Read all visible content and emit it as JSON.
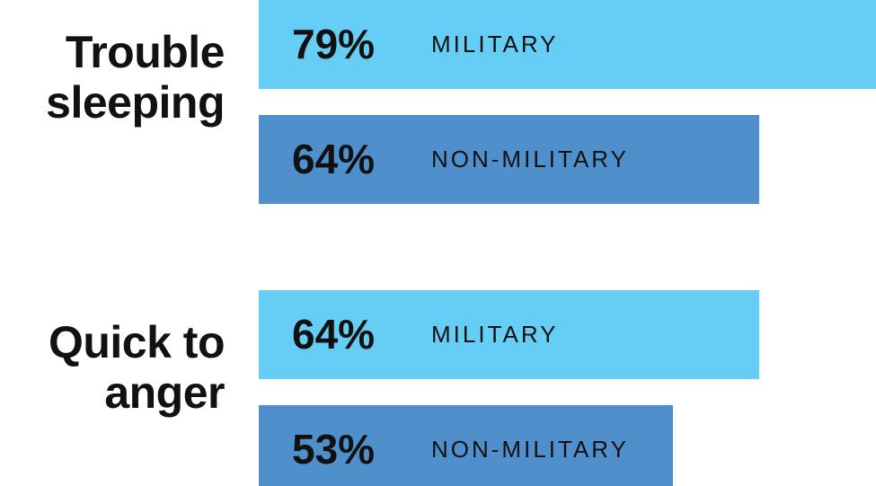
{
  "chart_data": {
    "type": "bar",
    "orientation": "horizontal",
    "categories": [
      "Trouble sleeping",
      "Quick to anger"
    ],
    "series": [
      {
        "name": "MILITARY",
        "color": "#66cdf5",
        "values": [
          79,
          64
        ],
        "value_labels": [
          "79%",
          "64%"
        ]
      },
      {
        "name": "NON-MILITARY",
        "color": "#4f8fcc",
        "values": [
          64,
          53
        ],
        "value_labels": [
          "64%",
          "53%"
        ]
      }
    ]
  }
}
